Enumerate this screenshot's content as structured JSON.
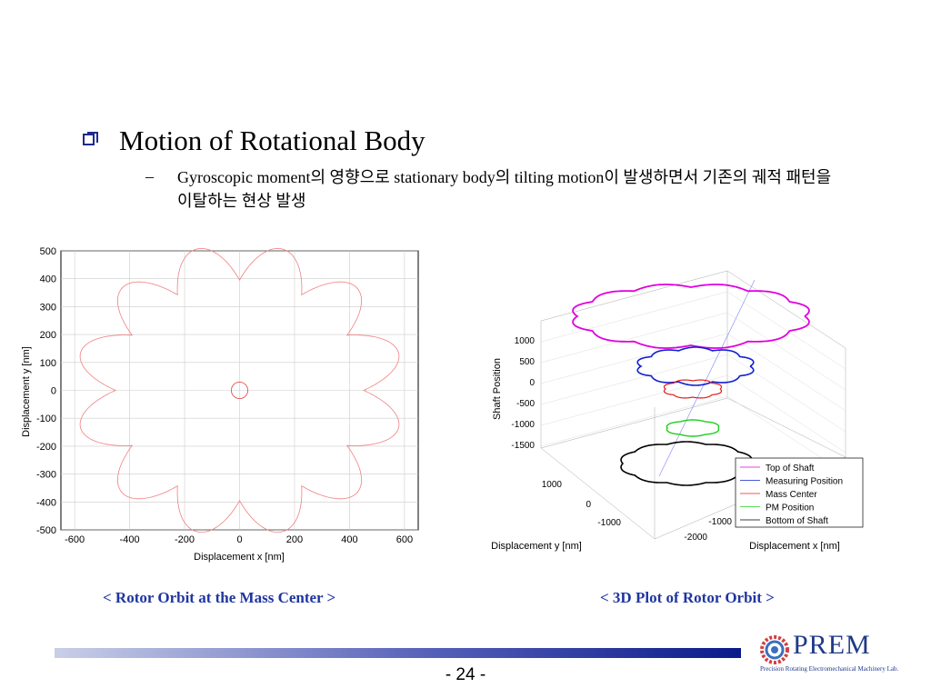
{
  "slide": {
    "title": "Motion of Rotational Body",
    "subtitle_dash": "–",
    "subtitle": "Gyroscopic moment의 영향으로 stationary body의 tilting motion이 발생하면서 기존의 궤적 패턴을 이탈하는 현상 발생",
    "caption_left": "< Rotor Orbit at the Mass Center >",
    "caption_right": "< 3D Plot of Rotor Orbit >",
    "page_number": "- 24 -",
    "logo": {
      "name": "PREM",
      "subtitle": "Precision Rotating Electromechanical Machinery Lab.",
      "icon": "gear-logo-icon"
    },
    "colors": {
      "accent": "#1f35a0",
      "footer_start": "#c9cfe8",
      "footer_end": "#0a1a8a"
    }
  },
  "chart_data": [
    {
      "type": "line",
      "title": "",
      "xlabel": "Displacement x [nm]",
      "ylabel": "Displacement y [nm]",
      "xlim": [
        -650,
        650
      ],
      "ylim": [
        -500,
        500
      ],
      "xticks": [
        -600,
        -400,
        -200,
        0,
        200,
        400,
        600
      ],
      "yticks": [
        500,
        400,
        300,
        200,
        100,
        0,
        -100,
        -200,
        -300,
        -400,
        -500
      ],
      "grid": true,
      "series": [
        {
          "color": "#f08080",
          "description": "scalloped orbit outline",
          "radius_nm": [
            430,
            570
          ],
          "lobes": 12
        },
        {
          "color": "#e05050",
          "description": "small inner orbit",
          "center": [
            0,
            0
          ],
          "radius_nm": 30
        }
      ]
    },
    {
      "type": "line",
      "title": "",
      "xlabel": "Displacement x [nm]",
      "ylabel": "Displacement y [nm]",
      "zlabel": "Shaft Position",
      "zticks": [
        1000,
        500,
        0,
        -500,
        -1000,
        -1500
      ],
      "yticks": [
        1000,
        0,
        -1000
      ],
      "xticks": [
        -2000,
        -1000
      ],
      "grid": true,
      "legend_position": "bottom-right",
      "series": [
        {
          "name": "Top of Shaft",
          "color": "#e000e0"
        },
        {
          "name": "Measuring Position",
          "color": "#1020d0"
        },
        {
          "name": "Mass Center",
          "color": "#e02020"
        },
        {
          "name": "PM Position",
          "color": "#20d020"
        },
        {
          "name": "Bottom of Shaft",
          "color": "#000000"
        }
      ]
    }
  ]
}
